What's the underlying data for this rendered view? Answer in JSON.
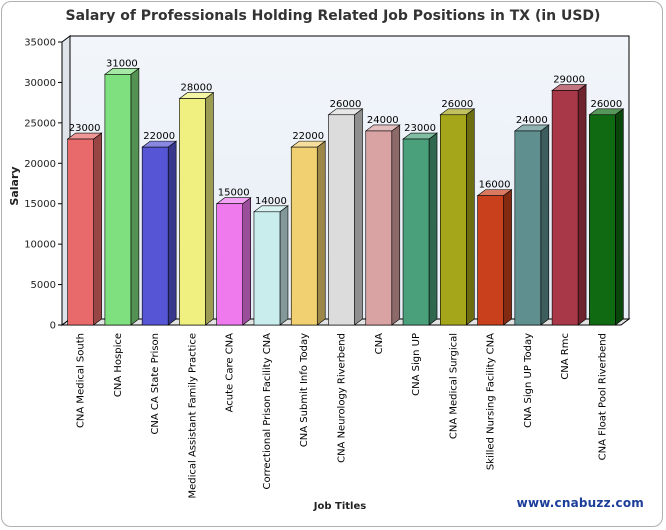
{
  "chart_data": {
    "type": "bar",
    "title": "Salary of Professionals Holding Related Job Positions in TX (in USD)",
    "xlabel": "Job Titles",
    "ylabel": "Salary",
    "ylim": [
      0,
      35000
    ],
    "yticks": [
      "0",
      "5000",
      "10000",
      "15000",
      "20000",
      "25000",
      "30000",
      "35000"
    ],
    "grid": false,
    "legend": "none",
    "categories": [
      "CNA Medical South",
      "CNA Hospice",
      "CNA CA State Prison",
      "Medical Assistant Family Practice",
      "Acute Care CNA",
      "Correctional Prison Facility CNA",
      "CNA Submit Info Today",
      "CNA Neurology Riverbend",
      "CNA",
      "CNA Sign UP",
      "CNA Medical Surgical",
      "Skilled Nursing Facility CNA",
      "CNA Sign UP Today",
      "CNA Rmc",
      "CNA Float Pool Riverbend"
    ],
    "values": [
      23000,
      31000,
      22000,
      28000,
      15000,
      14000,
      22000,
      26000,
      24000,
      23000,
      26000,
      16000,
      24000,
      29000,
      26000
    ],
    "value_labels": [
      "23000",
      "31000",
      "22000",
      "28000",
      "15000",
      "14000",
      "22000",
      "26000",
      "24000",
      "23000",
      "26000",
      "16000",
      "24000",
      "29000",
      "26000"
    ],
    "colors": [
      "#e86a6a",
      "#7fe07f",
      "#5555d6",
      "#f0f080",
      "#ee7aee",
      "#c9ecec",
      "#f0d070",
      "#dcdcdc",
      "#d9a3a3",
      "#4aa07a",
      "#a6a61a",
      "#c8401c",
      "#5f8f8f",
      "#a83848",
      "#0f6a12"
    ]
  },
  "credit": "www.cnabuzz.com"
}
